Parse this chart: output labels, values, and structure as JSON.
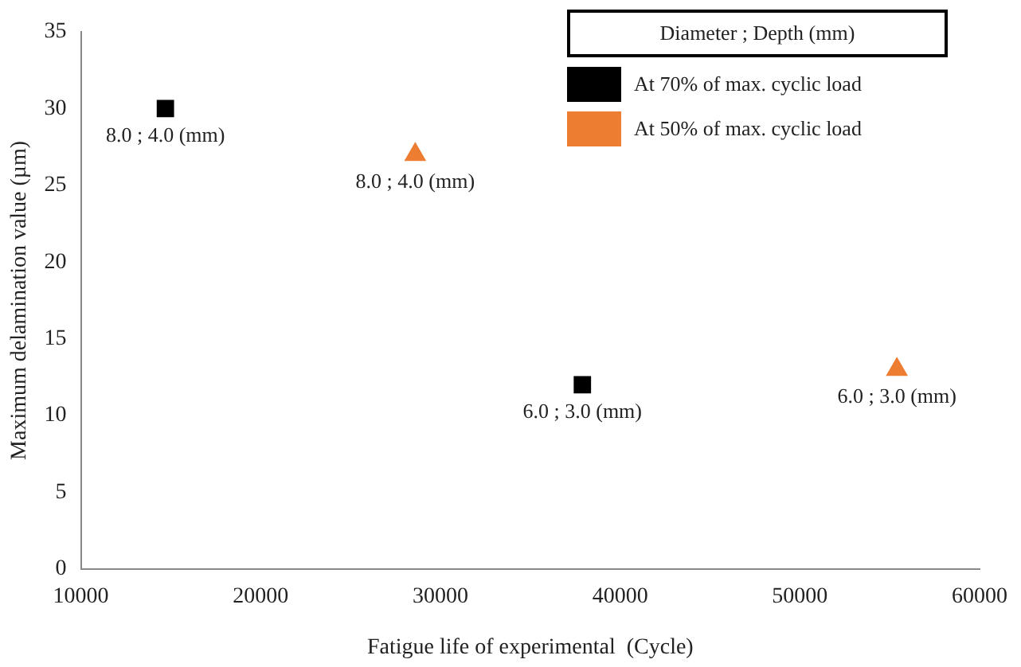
{
  "chart_data": {
    "type": "scatter",
    "xlabel": "Fatigue life of experimental  (Cycle)",
    "ylabel": "Maximum delamination value (µm)",
    "legend_title": "Diameter ; Depth (mm)",
    "legend": "top right",
    "series": [
      {
        "name": "At 70% of max. cyclic load",
        "color": "#000000",
        "marker": "square",
        "x": [
          14700,
          37900
        ],
        "values": [
          30,
          12
        ]
      },
      {
        "name": "At 50% of max. cyclic load",
        "color": "#ed7d31",
        "marker": "triangle",
        "x": [
          28600,
          55400
        ],
        "values": [
          27,
          13
        ]
      }
    ],
    "xlim": [
      10000,
      60000
    ],
    "xticks": [
      10000,
      20000,
      30000,
      40000,
      50000,
      60000
    ],
    "ylim": [
      0,
      35
    ],
    "yticks": [
      0,
      5,
      10,
      15,
      20,
      25,
      30,
      35
    ],
    "grid": false,
    "annotations": [
      {
        "text": "8.0 ; 4.0 (mm)",
        "x": 14700,
        "y": 30
      },
      {
        "text": "8.0 ; 4.0 (mm)",
        "x": 28600,
        "y": 27
      },
      {
        "text": "6.0 ; 3.0 (mm)",
        "x": 37900,
        "y": 12
      },
      {
        "text": "6.0 ; 3.0 (mm)",
        "x": 55400,
        "y": 13
      }
    ]
  }
}
